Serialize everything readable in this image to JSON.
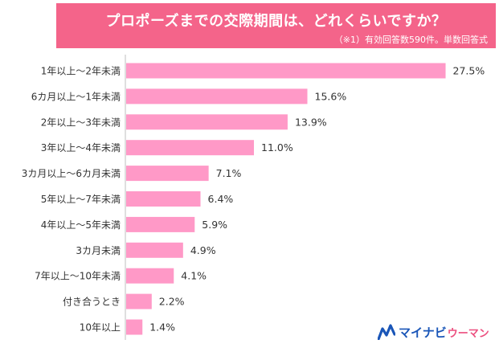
{
  "header": {
    "title": "プロポーズまでの交際期間は、どれくらいですか？",
    "note": "（※1）有効回答数590件。単数回答式"
  },
  "logo": {
    "icon": "mynavi-m-icon",
    "main_text": "マイナビ",
    "sub_text": "ウーマン"
  },
  "colors": {
    "banner": "#f4648a",
    "bar": "#ff99c7",
    "axis": "#bfbfbf"
  },
  "chart_data": {
    "type": "bar",
    "orientation": "horizontal",
    "title": "プロポーズまでの交際期間は、どれくらいですか？",
    "subtitle": "（※1）有効回答数590件。単数回答式",
    "categories": [
      "1年以上～2年未満",
      "6カ月以上～1年未満",
      "2年以上～3年未満",
      "3年以上～4年未満",
      "3カ月以上～6カ月未満",
      "5年以上～7年未満",
      "4年以上～5年未満",
      "3カ月未満",
      "7年以上～10年未満",
      "付き合うとき",
      "10年以上"
    ],
    "values": [
      27.5,
      15.6,
      13.9,
      11.0,
      7.1,
      6.4,
      5.9,
      4.9,
      4.1,
      2.2,
      1.4
    ],
    "value_labels": [
      "27.5%",
      "15.6%",
      "13.9%",
      "11.0%",
      "7.1%",
      "6.4%",
      "5.9%",
      "4.9%",
      "4.1%",
      "2.2%",
      "1.4%"
    ],
    "xlim": [
      0,
      28.5
    ],
    "xlabel": "",
    "ylabel": "",
    "grid": false,
    "legend": "none",
    "data_labels": true
  }
}
